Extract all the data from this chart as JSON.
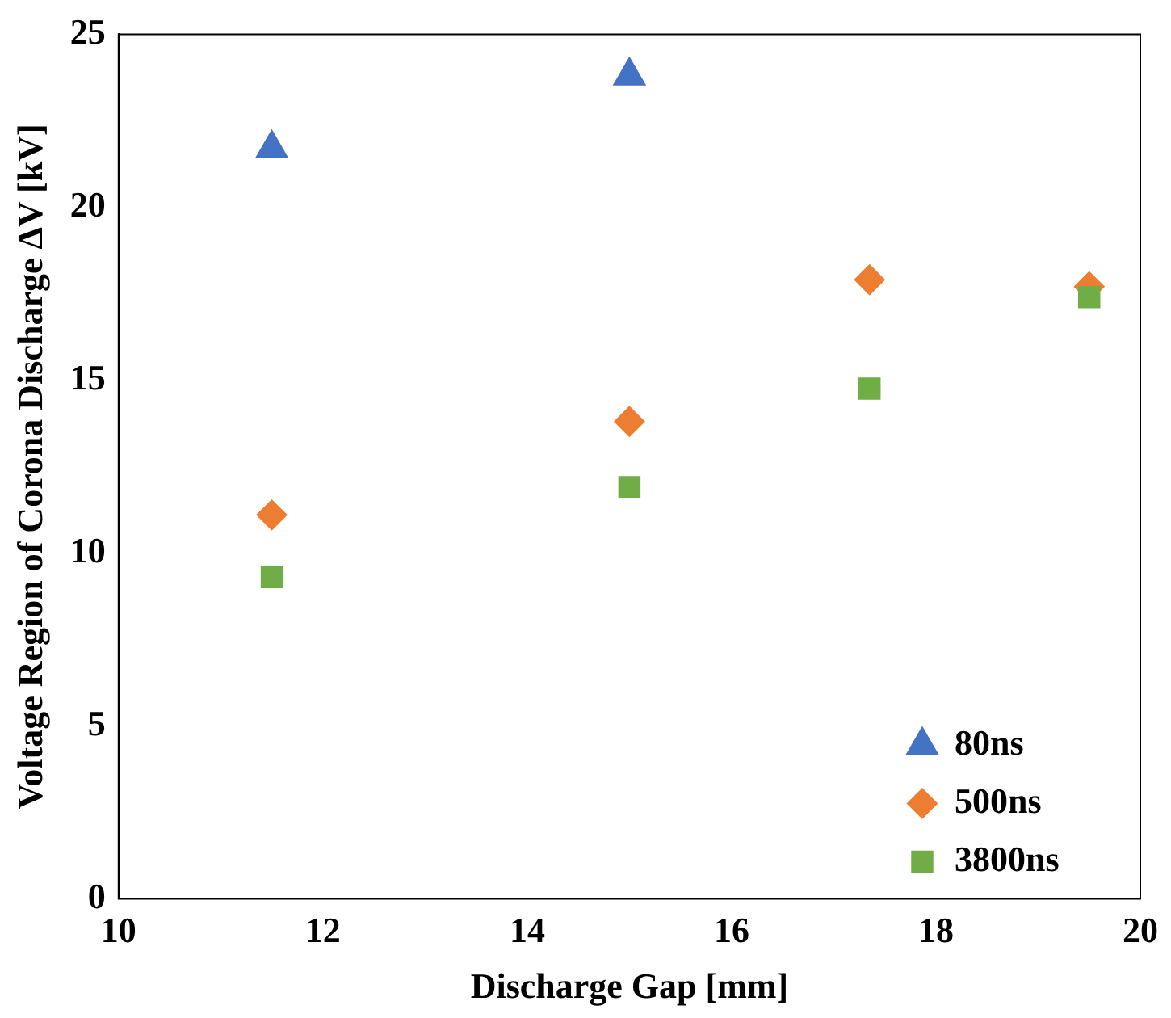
{
  "chart_data": {
    "type": "scatter",
    "xlabel": "Discharge Gap [mm]",
    "ylabel": "Voltage Region of Corona Discharge ΔV [kV]",
    "xlim": [
      10,
      20
    ],
    "xticks": [
      10,
      12,
      14,
      16,
      18,
      20
    ],
    "ylim": [
      0,
      25
    ],
    "yticks": [
      0,
      5,
      10,
      15,
      20,
      25
    ],
    "grid": false,
    "legend": "bottom right",
    "series": [
      {
        "name": "80ns",
        "color": "#4472c4",
        "marker": "triangle",
        "x": [
          11.5,
          15
        ],
        "values": [
          21.7,
          23.8
        ]
      },
      {
        "name": "500ns",
        "color": "#ed7d31",
        "marker": "diamond",
        "x": [
          11.5,
          15,
          17.35,
          19.5
        ],
        "values": [
          11.1,
          13.8,
          17.9,
          17.7
        ]
      },
      {
        "name": "3800ns",
        "color": "#70ad47",
        "marker": "square",
        "x": [
          11.5,
          15,
          17.35,
          19.5
        ],
        "values": [
          9.3,
          11.9,
          14.75,
          17.4
        ]
      }
    ]
  }
}
